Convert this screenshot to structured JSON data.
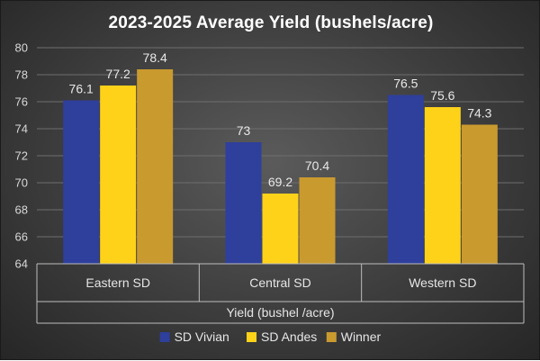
{
  "chart_data": {
    "type": "bar",
    "title": "2023-2025 Average Yield (bushels/acre)",
    "xlabel": "Yield (bushel /acre)",
    "ylabel": "",
    "ylim": [
      64,
      80
    ],
    "yticks": [
      64,
      66,
      68,
      70,
      72,
      74,
      76,
      78,
      80
    ],
    "grid": true,
    "legend_position": "bottom",
    "categories": [
      "Eastern SD",
      "Central SD",
      "Western SD"
    ],
    "series": [
      {
        "name": "SD Vivian",
        "color": "#2e3f9c",
        "values": [
          76.1,
          73,
          76.5
        ],
        "labels": [
          "76.1",
          "73",
          "76.5"
        ]
      },
      {
        "name": "SD Andes",
        "color": "#ffd21a",
        "values": [
          77.2,
          69.2,
          75.6
        ],
        "labels": [
          "77.2",
          "69.2",
          "75.6"
        ]
      },
      {
        "name": "Winner",
        "color": "#c99a2e",
        "values": [
          78.4,
          70.4,
          74.3
        ],
        "labels": [
          "78.4",
          "70.4",
          "74.3"
        ]
      }
    ]
  }
}
